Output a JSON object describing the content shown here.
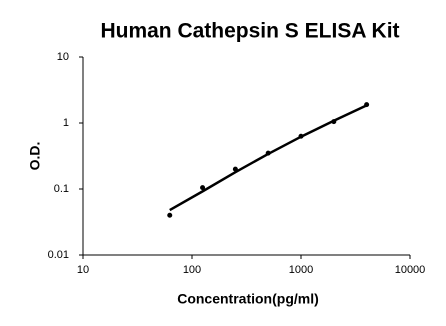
{
  "chart_data": {
    "type": "scatter",
    "title": "Human Cathepsin S ELISA Kit",
    "x_label": "Concentration(pg/ml)",
    "y_label": "O.D.",
    "xlog": true,
    "ylog": true,
    "xlim": [
      10,
      10000
    ],
    "ylim": [
      0.01,
      10
    ],
    "xticks": [
      10,
      100,
      1000,
      10000
    ],
    "yticks": [
      0.01,
      0.1,
      1,
      10
    ],
    "series": [
      {
        "color": "#000000",
        "x": [
          62.5,
          125,
          250,
          500,
          1000,
          2000,
          4000
        ],
        "values": [
          0.04,
          0.105,
          0.2,
          0.35,
          0.63,
          1.05,
          1.9
        ]
      }
    ],
    "fit": {
      "color": "#000000",
      "x": [
        62.5,
        125,
        250,
        500,
        1000,
        2000,
        4000
      ],
      "values": [
        0.048,
        0.092,
        0.18,
        0.34,
        0.62,
        1.08,
        1.85
      ]
    }
  }
}
